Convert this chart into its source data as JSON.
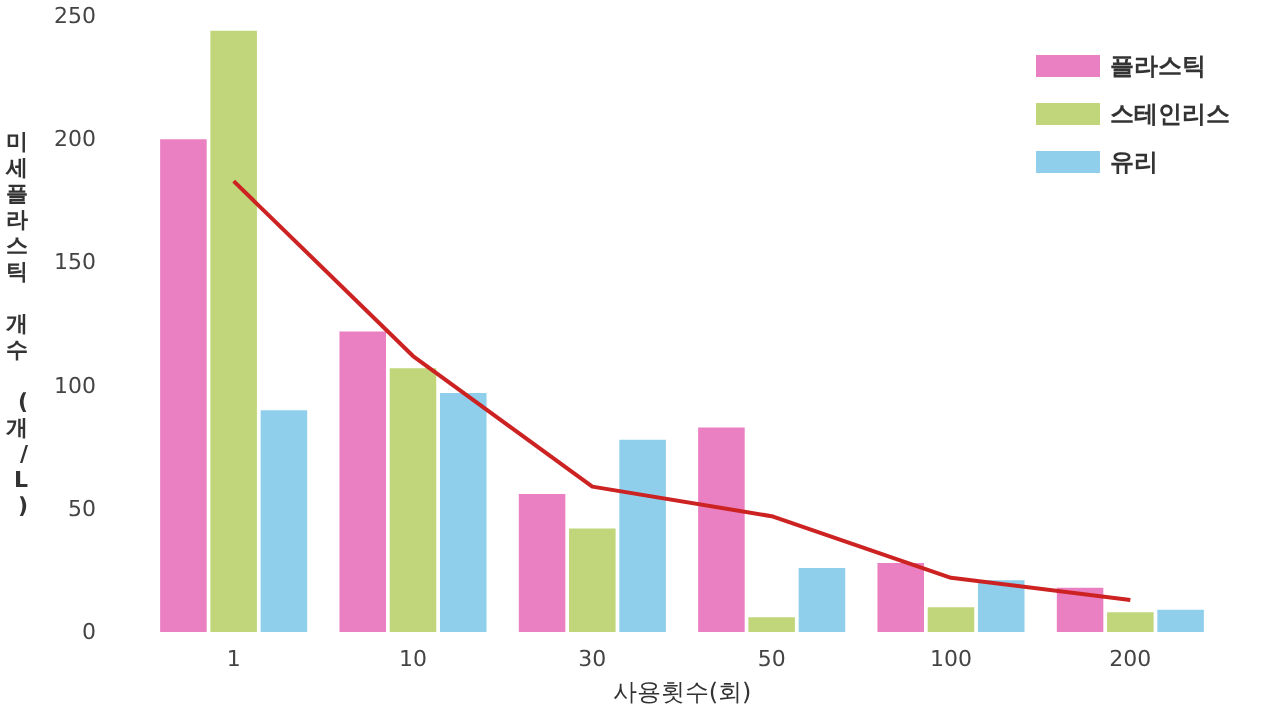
{
  "chart_data": {
    "type": "bar",
    "categories": [
      "1",
      "10",
      "30",
      "50",
      "100",
      "200"
    ],
    "xlabel": "사용횟수(회)",
    "ylabel": "미세플라스틱 개수 (개/L)",
    "series": [
      {
        "name": "플라스틱",
        "color": "#ea7fc1",
        "values": [
          200,
          122,
          56,
          83,
          28,
          18
        ]
      },
      {
        "name": "스테인리스",
        "color": "#c1d67a",
        "values": [
          244,
          107,
          42,
          6,
          10,
          8
        ]
      },
      {
        "name": "유리",
        "color": "#8fcfec",
        "values": [
          90,
          97,
          78,
          26,
          21,
          9
        ]
      },
      {
        "type": "line",
        "color": "#cc2222",
        "values": [
          183,
          112,
          59,
          47,
          22,
          13
        ]
      }
    ],
    "ylim": [
      0,
      250
    ],
    "yticks": [
      0,
      50,
      100,
      150,
      200,
      250
    ],
    "grid": false,
    "legend": "top right",
    "marker": "none"
  }
}
